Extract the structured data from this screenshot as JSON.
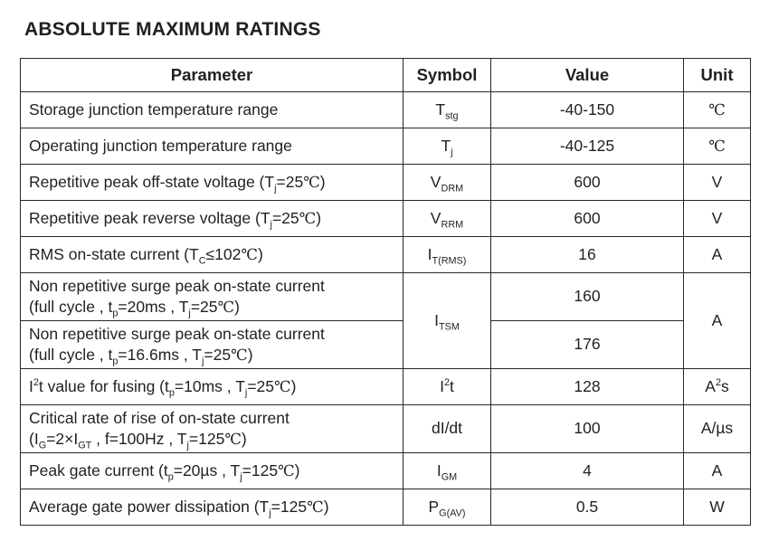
{
  "page": {
    "title": "ABSOLUTE MAXIMUM RATINGS"
  },
  "colors": {
    "text": "#231f20",
    "border": "#2b2623",
    "inner_split_border": "#9c9c9c",
    "background": "#ffffff"
  },
  "table": {
    "headers": [
      "Parameter",
      "Symbol",
      "Value",
      "Unit"
    ],
    "rows": [
      {
        "parameter": [
          [
            "t",
            "Storage junction temperature range"
          ]
        ],
        "symbol": [
          [
            "t",
            "T"
          ],
          [
            "sub",
            "stg"
          ]
        ],
        "value": "-40-150",
        "unit": [
          [
            "cel",
            "℃"
          ]
        ]
      },
      {
        "parameter": [
          [
            "t",
            "Operating junction temperature range"
          ]
        ],
        "symbol": [
          [
            "t",
            "T"
          ],
          [
            "sub",
            "j"
          ]
        ],
        "value": "-40-125",
        "unit": [
          [
            "cel",
            "℃"
          ]
        ]
      },
      {
        "parameter": [
          [
            "t",
            "Repetitive peak off-state voltage (T"
          ],
          [
            "sub",
            "j"
          ],
          [
            "t",
            "=25"
          ],
          [
            "cel",
            "℃"
          ],
          [
            "t",
            ")"
          ]
        ],
        "symbol": [
          [
            "t",
            "V"
          ],
          [
            "sub",
            "DRM"
          ]
        ],
        "value": "600",
        "unit": [
          [
            "t",
            "V"
          ]
        ]
      },
      {
        "parameter": [
          [
            "t",
            "Repetitive peak reverse voltage (T"
          ],
          [
            "sub",
            "j"
          ],
          [
            "t",
            "=25"
          ],
          [
            "cel",
            "℃"
          ],
          [
            "t",
            ")"
          ]
        ],
        "symbol": [
          [
            "t",
            "V"
          ],
          [
            "sub",
            "RRM"
          ]
        ],
        "value": "600",
        "unit": [
          [
            "t",
            "V"
          ]
        ]
      },
      {
        "parameter": [
          [
            "t",
            "RMS on-state current (T"
          ],
          [
            "sub",
            "C"
          ],
          [
            "t",
            "≤102"
          ],
          [
            "cel",
            "℃"
          ],
          [
            "t",
            ")"
          ]
        ],
        "symbol": [
          [
            "t",
            "I"
          ],
          [
            "sub",
            "T(RMS)"
          ]
        ],
        "value": "16",
        "unit": [
          [
            "t",
            "A"
          ]
        ]
      },
      {
        "parameter": [
          [
            "t",
            "Non repetitive surge peak on-state current"
          ],
          [
            "br",
            ""
          ],
          [
            "t",
            "(full cycle , t"
          ],
          [
            "sub",
            "p"
          ],
          [
            "t",
            "=20ms , T"
          ],
          [
            "sub",
            "j"
          ],
          [
            "t",
            "=25"
          ],
          [
            "cel",
            "℃"
          ],
          [
            "t",
            ")"
          ]
        ],
        "symbol": [
          [
            "t",
            "I"
          ],
          [
            "sub",
            "TSM"
          ]
        ],
        "value": "160",
        "unit": [
          [
            "t",
            "A"
          ]
        ]
      },
      {
        "parameter": [
          [
            "t",
            "Non repetitive surge peak on-state current"
          ],
          [
            "br",
            ""
          ],
          [
            "t",
            "(full cycle , t"
          ],
          [
            "sub",
            "p"
          ],
          [
            "t",
            "=16.6ms , T"
          ],
          [
            "sub",
            "j"
          ],
          [
            "t",
            "=25"
          ],
          [
            "cel",
            "℃"
          ],
          [
            "t",
            ")"
          ]
        ],
        "value": "176"
      },
      {
        "parameter": [
          [
            "t",
            "I"
          ],
          [
            "sup",
            "2"
          ],
          [
            "t",
            "t value for fusing (t"
          ],
          [
            "sub",
            "p"
          ],
          [
            "t",
            "=10ms , T"
          ],
          [
            "sub",
            "j"
          ],
          [
            "t",
            "=25"
          ],
          [
            "cel",
            "℃"
          ],
          [
            "t",
            ")"
          ]
        ],
        "symbol": [
          [
            "t",
            "I"
          ],
          [
            "sup",
            "2"
          ],
          [
            "t",
            "t"
          ]
        ],
        "value": "128",
        "unit": [
          [
            "t",
            "A"
          ],
          [
            "sup",
            "2"
          ],
          [
            "t",
            "s"
          ]
        ]
      },
      {
        "parameter": [
          [
            "t",
            "Critical rate of rise of on-state current"
          ],
          [
            "br",
            ""
          ],
          [
            "t",
            "(I"
          ],
          [
            "sub",
            "G"
          ],
          [
            "t",
            "=2×I"
          ],
          [
            "sub",
            "GT"
          ],
          [
            "t",
            " , f=100Hz , T"
          ],
          [
            "sub",
            "j"
          ],
          [
            "t",
            "=125"
          ],
          [
            "cel",
            "℃"
          ],
          [
            "t",
            ")"
          ]
        ],
        "symbol": [
          [
            "t",
            "dI/dt"
          ]
        ],
        "value": "100",
        "unit": [
          [
            "t",
            "A/µs"
          ]
        ]
      },
      {
        "parameter": [
          [
            "t",
            "Peak gate current (t"
          ],
          [
            "sub",
            "p"
          ],
          [
            "t",
            "=20µs , T"
          ],
          [
            "sub",
            "j"
          ],
          [
            "t",
            "=125"
          ],
          [
            "cel",
            "℃"
          ],
          [
            "t",
            ")"
          ]
        ],
        "symbol": [
          [
            "t",
            "I"
          ],
          [
            "sub",
            "GM"
          ]
        ],
        "value": "4",
        "unit": [
          [
            "t",
            "A"
          ]
        ]
      },
      {
        "parameter": [
          [
            "t",
            "Average gate power dissipation (T"
          ],
          [
            "sub",
            "j"
          ],
          [
            "t",
            "=125"
          ],
          [
            "cel",
            "℃"
          ],
          [
            "t",
            ")"
          ]
        ],
        "symbol": [
          [
            "t",
            "P"
          ],
          [
            "sub",
            "G(AV)"
          ]
        ],
        "value": "0.5",
        "unit": [
          [
            "t",
            "W"
          ]
        ]
      }
    ]
  }
}
